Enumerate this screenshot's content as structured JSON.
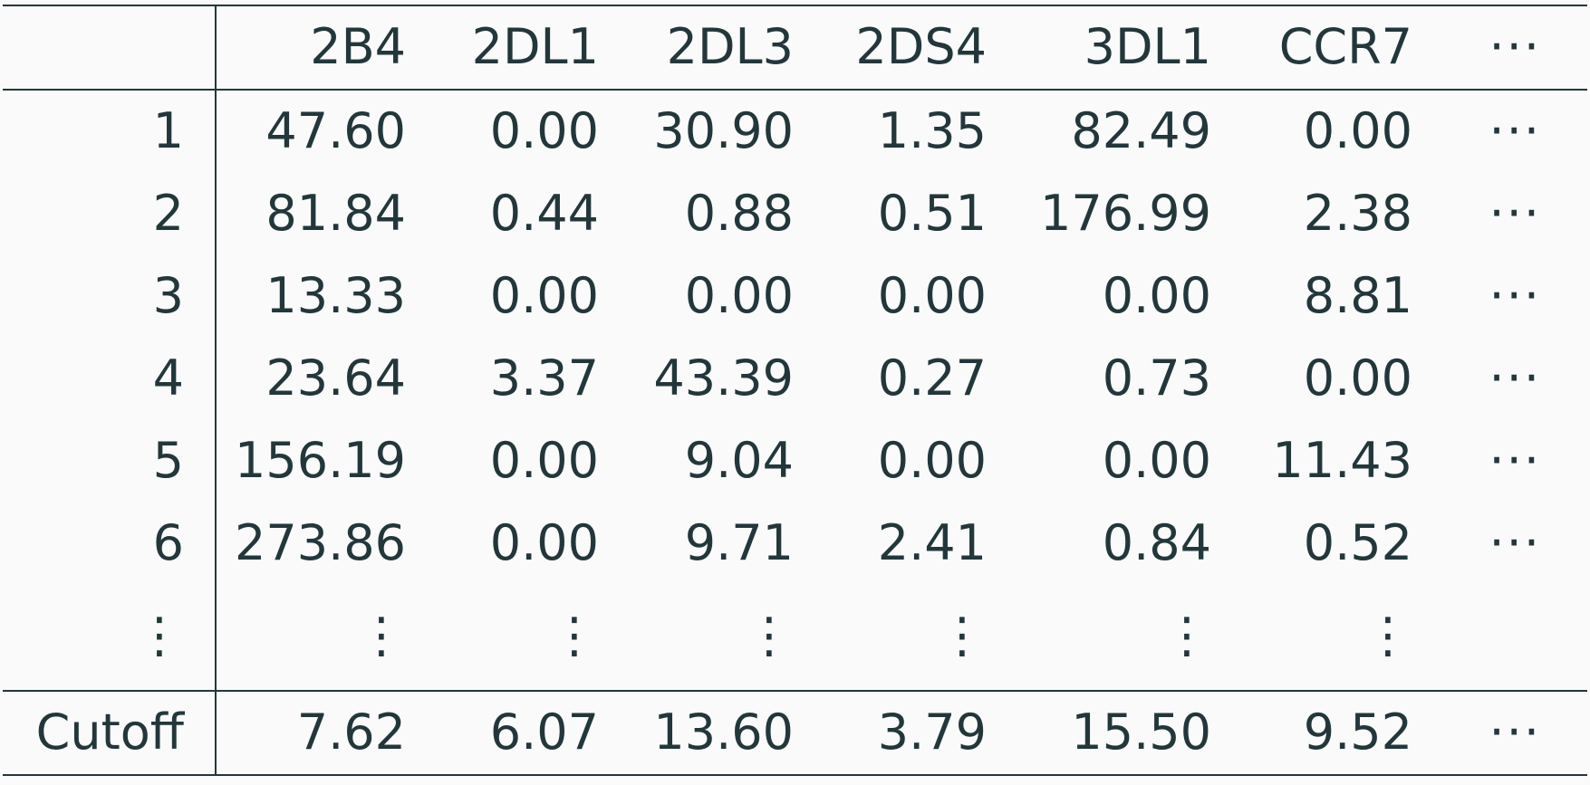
{
  "table": {
    "columns": [
      "",
      "2B4",
      "2DL1",
      "2DL3",
      "2DS4",
      "3DL1",
      "CCR7",
      "···"
    ],
    "rows": [
      [
        "1",
        "47.60",
        "0.00",
        "30.90",
        "1.35",
        "82.49",
        "0.00",
        "···"
      ],
      [
        "2",
        "81.84",
        "0.44",
        "0.88",
        "0.51",
        "176.99",
        "2.38",
        "···"
      ],
      [
        "3",
        "13.33",
        "0.00",
        "0.00",
        "0.00",
        "0.00",
        "8.81",
        "···"
      ],
      [
        "4",
        "23.64",
        "3.37",
        "43.39",
        "0.27",
        "0.73",
        "0.00",
        "···"
      ],
      [
        "5",
        "156.19",
        "0.00",
        "9.04",
        "0.00",
        "0.00",
        "11.43",
        "···"
      ],
      [
        "6",
        "273.86",
        "0.00",
        "9.71",
        "2.41",
        "0.84",
        "0.52",
        "···"
      ]
    ],
    "ellipsis_row": [
      "⋮",
      "⋮",
      "⋮",
      "⋮",
      "⋮",
      "⋮",
      "⋮",
      ""
    ],
    "footer": [
      "Cutoff",
      "7.62",
      "6.07",
      "13.60",
      "3.79",
      "15.50",
      "9.52",
      "···"
    ]
  }
}
